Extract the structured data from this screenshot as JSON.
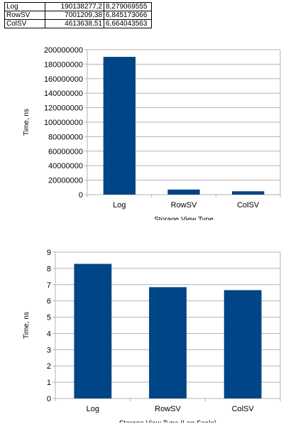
{
  "table": {
    "rows": [
      [
        "Log",
        "190138277,2",
        "8,279069555"
      ],
      [
        "RowSV",
        "7001209,38",
        "6,845173066"
      ],
      [
        "ColSV",
        "4613638,51",
        "6,664043563"
      ]
    ]
  },
  "colors": {
    "bar": "#004586",
    "grid": "#b3b3b3",
    "axis": "#b3b3b3"
  },
  "chart_data": [
    {
      "type": "bar",
      "categories": [
        "Log",
        "RowSV",
        "ColSV"
      ],
      "values": [
        190138277.2,
        7001209.38,
        4613638.51
      ],
      "title": "",
      "xlabel": "Storage View Type",
      "ylabel": "Time, ns",
      "ylim": [
        0,
        200000000
      ],
      "yticks": [
        0,
        20000000,
        40000000,
        60000000,
        80000000,
        100000000,
        120000000,
        140000000,
        160000000,
        180000000,
        200000000
      ],
      "grid": true,
      "legend": "none"
    },
    {
      "type": "bar",
      "categories": [
        "Log",
        "RowSV",
        "ColSV"
      ],
      "values": [
        8.279069555,
        6.845173066,
        6.664043563
      ],
      "title": "",
      "xlabel": "Storage View Type (Log Scale)",
      "ylabel": "Time, ns",
      "ylim": [
        0,
        9
      ],
      "yticks": [
        0,
        1,
        2,
        3,
        4,
        5,
        6,
        7,
        8,
        9
      ],
      "grid": true,
      "legend": "none"
    }
  ]
}
